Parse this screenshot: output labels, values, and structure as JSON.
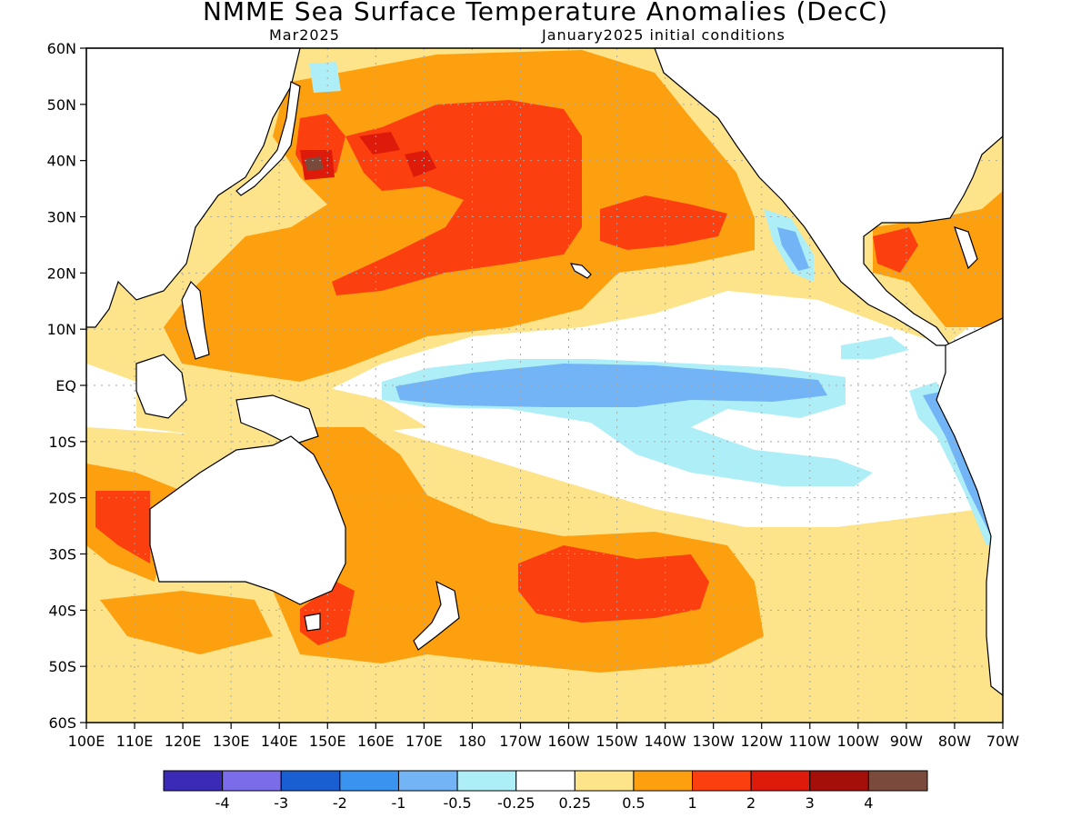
{
  "title": "NMME Sea Surface Temperature Anomalies (DecC)",
  "subtitle_left": "Mar2025",
  "subtitle_right": "January2025 initial conditions",
  "latitude_labels": [
    "60N",
    "50N",
    "40N",
    "30N",
    "20N",
    "10N",
    "EQ",
    "10S",
    "20S",
    "30S",
    "40S",
    "50S",
    "60S"
  ],
  "longitude_labels": [
    "100E",
    "110E",
    "120E",
    "130E",
    "140E",
    "150E",
    "160E",
    "170E",
    "180",
    "170W",
    "160W",
    "150W",
    "140W",
    "130W",
    "120W",
    "110W",
    "100W",
    "90W",
    "80W",
    "70W"
  ],
  "colorbar": {
    "colors": [
      "#3b2ab5",
      "#7b6cea",
      "#1a5fd2",
      "#3b93f0",
      "#72b4f5",
      "#aeeef7",
      "#ffffff",
      "#fde38a",
      "#fda010",
      "#fc3f0f",
      "#de1b0a",
      "#a50f0a",
      "#7a4b3d"
    ],
    "labels": [
      "-4",
      "-3",
      "-2",
      "-1",
      "-0.5",
      "-0.25",
      "0.25",
      "0.5",
      "1",
      "2",
      "3",
      "4"
    ]
  },
  "map_colors": {
    "land": "#ffffff",
    "coast": "#000000",
    "grid": "#a8a8a8"
  }
}
